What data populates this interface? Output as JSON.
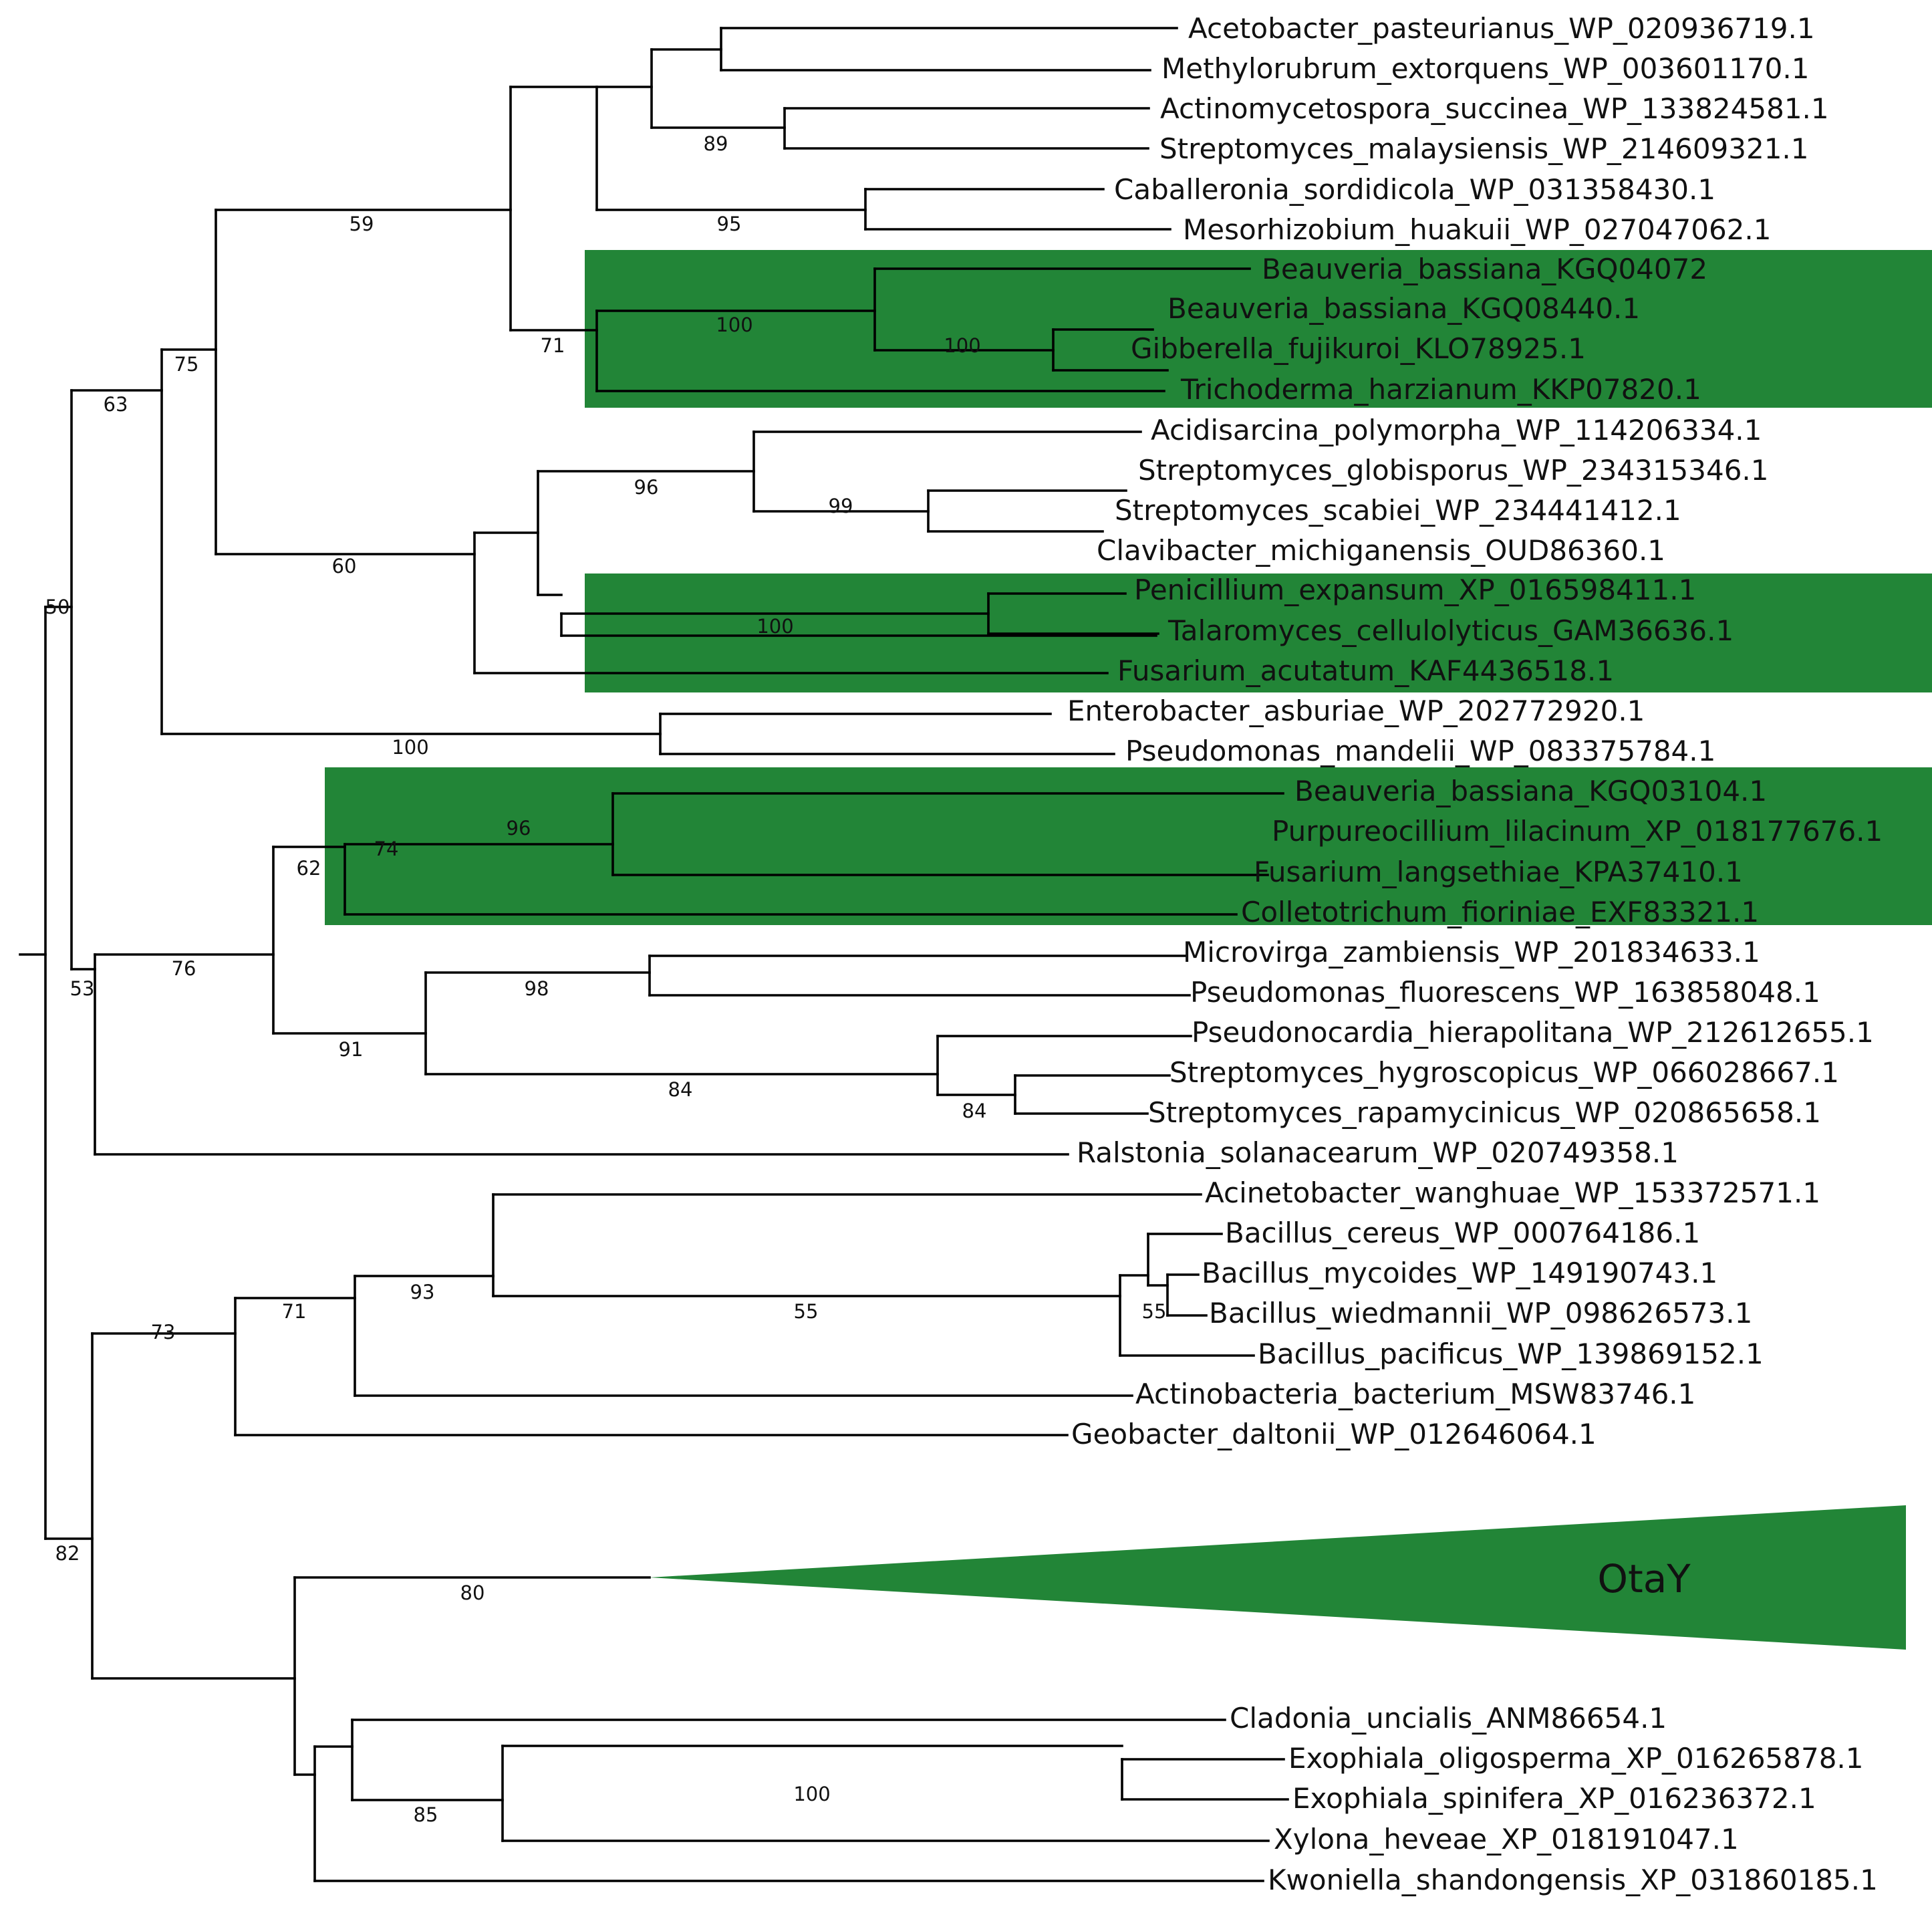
{
  "colors": {
    "highlight": "#228537",
    "branch": "#000000",
    "text": "#111111"
  },
  "taxa": {
    "t01": "Acetobacter_pasteurianus_WP_020936719.1",
    "t02": "Methylorubrum_extorquens_WP_003601170.1",
    "t03": "Actinomycetospora_succinea_WP_133824581.1",
    "t04": "Streptomyces_malaysiensis_WP_214609321.1",
    "t05": "Caballeronia_sordidicola_WP_031358430.1",
    "t06": "Mesorhizobium_huakuii_WP_027047062.1",
    "t07": "Beauveria_bassiana_KGQ04072",
    "t08": "Beauveria_bassiana_KGQ08440.1",
    "t09": "Gibberella_fujikuroi_KLO78925.1",
    "t10": "Trichoderma_harzianum_KKP07820.1",
    "t11": "Acidisarcina_polymorpha_WP_114206334.1",
    "t12": "Streptomyces_globisporus_WP_234315346.1",
    "t13": "Streptomyces_scabiei_WP_234441412.1",
    "t14": "Clavibacter_michiganensis_OUD86360.1",
    "t15": "Penicillium_expansum_XP_016598411.1",
    "t16": "Talaromyces_cellulolyticus_GAM36636.1",
    "t17": "Fusarium_acutatum_KAF4436518.1",
    "t18": "Enterobacter_asburiae_WP_202772920.1",
    "t19": "Pseudomonas_mandelii_WP_083375784.1",
    "t20": "Beauveria_bassiana_KGQ03104.1",
    "t21": "Purpureocillium_lilacinum_XP_018177676.1",
    "t22": "Fusarium_langsethiae_KPA37410.1",
    "t23": "Colletotrichum_fioriniae_EXF83321.1",
    "t24": "Microvirga_zambiensis_WP_201834633.1",
    "t25": "Pseudomonas_fluorescens_WP_163858048.1",
    "t26": "Pseudonocardia_hierapolitana_WP_212612655.1",
    "t27": "Streptomyces_hygroscopicus_WP_066028667.1",
    "t28": "Streptomyces_rapamycinicus_WP_020865658.1",
    "t29": "Ralstonia_solanacearum_WP_020749358.1",
    "t30": "Acinetobacter_wanghuae_WP_153372571.1",
    "t31": "Bacillus_cereus_WP_000764186.1",
    "t32": "Bacillus_mycoides_WP_149190743.1",
    "t33": "Bacillus_wiedmannii_WP_098626573.1",
    "t34": "Bacillus_pacificus_WP_139869152.1",
    "t35": "Actinobacteria_bacterium_MSW83746.1",
    "t36": "Geobacter_daltonii_WP_012646064.1",
    "t37": "Cladonia_uncialis_ANM86654.1",
    "t38": "Exophiala_oligosperma_XP_016265878.1",
    "t39": "Exophiala_spinifera_XP_016236372.1",
    "t40": "Xylona_heveae_XP_018191047.1",
    "t41": "Kwoniella_shandongensis_XP_031860185.1"
  },
  "collapsed_clade": "OtaY",
  "bootstrap": {
    "b01": "89",
    "b02": "95",
    "b03": "59",
    "b04": "100",
    "b05": "100",
    "b06": "71",
    "b07": "75",
    "b08": "63",
    "b09": "96",
    "b10": "99",
    "b11": "60",
    "b12": "100",
    "b13": "100",
    "b14": "50",
    "b15": "96",
    "b16": "74",
    "b17": "62",
    "b18": "76",
    "b19": "98",
    "b20": "91",
    "b21": "84",
    "b22": "84",
    "b23": "53",
    "b24": "93",
    "b25": "55",
    "b26": "55",
    "b27": "71",
    "b28": "73",
    "b29": "80",
    "b30": "82",
    "b31": "85",
    "b32": "100"
  }
}
